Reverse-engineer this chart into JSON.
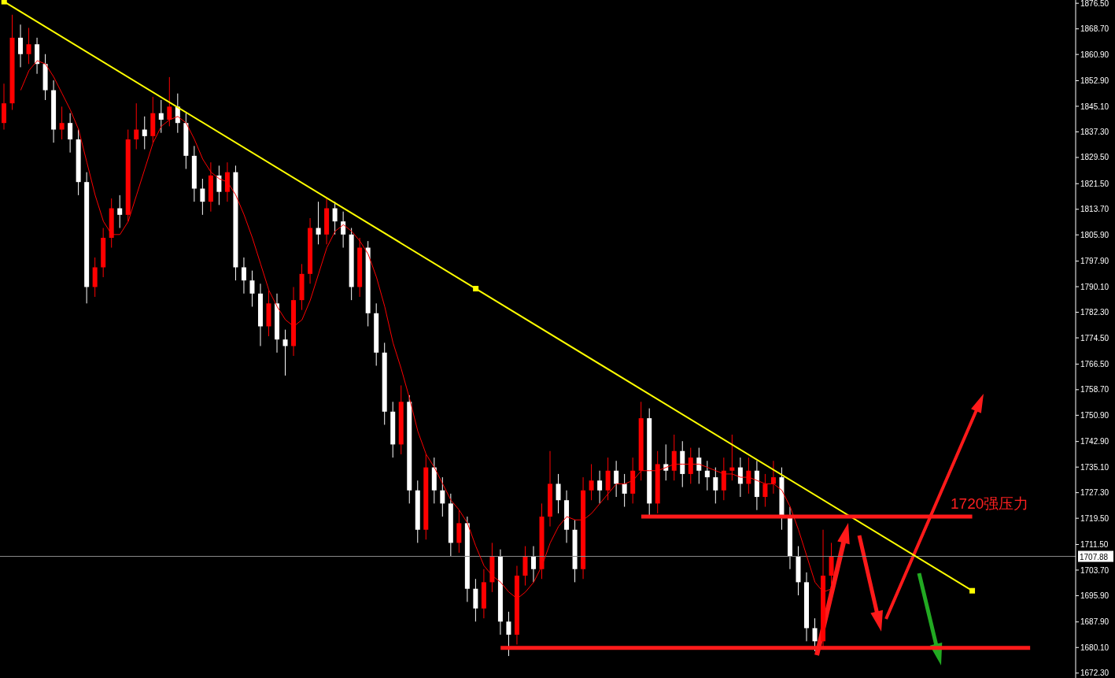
{
  "chart_data": {
    "type": "candlestick",
    "categories": [
      null,
      null,
      null,
      null,
      null,
      null,
      null,
      null,
      null,
      null,
      null,
      null,
      null,
      null,
      null,
      null,
      null,
      null,
      null,
      null,
      null,
      null,
      null,
      null,
      null,
      null,
      null,
      null,
      null,
      null,
      null,
      null,
      null,
      null,
      null,
      null,
      null,
      null,
      null,
      null,
      null,
      null,
      null,
      null,
      null,
      null,
      null,
      null,
      null,
      null,
      null,
      null,
      null,
      null,
      null,
      null,
      null,
      null,
      null,
      null,
      null,
      null,
      null,
      null,
      null,
      null,
      null,
      null,
      null,
      null,
      null,
      null,
      null,
      null,
      null,
      null,
      null,
      null,
      null,
      null,
      null,
      null,
      null,
      null,
      null,
      null,
      null,
      null,
      null,
      null,
      null,
      null,
      null,
      null,
      null,
      null,
      null,
      null,
      null,
      null,
      null,
      null,
      null,
      null,
      null,
      null,
      null,
      null,
      null,
      null,
      null,
      null,
      null,
      null,
      null,
      null,
      null,
      null,
      null,
      null,
      null,
      null,
      null,
      null,
      null,
      null,
      null,
      null,
      null,
      null
    ],
    "ohlc": [
      [
        1840,
        1852,
        1838,
        1846
      ],
      [
        1846,
        1873,
        1844,
        1866
      ],
      [
        1866,
        1870,
        1857,
        1861
      ],
      [
        1861,
        1869,
        1858,
        1864
      ],
      [
        1864,
        1866,
        1855,
        1858
      ],
      [
        1858,
        1861,
        1847,
        1850
      ],
      [
        1850,
        1853,
        1834,
        1838
      ],
      [
        1838,
        1845,
        1835,
        1840
      ],
      [
        1840,
        1843,
        1831,
        1835
      ],
      [
        1835,
        1838,
        1818,
        1822
      ],
      [
        1822,
        1825,
        1785,
        1790
      ],
      [
        1790,
        1799,
        1787,
        1796
      ],
      [
        1796,
        1808,
        1793,
        1805
      ],
      [
        1805,
        1817,
        1802,
        1814
      ],
      [
        1814,
        1818,
        1808,
        1812
      ],
      [
        1812,
        1838,
        1810,
        1835
      ],
      [
        1835,
        1846,
        1832,
        1838
      ],
      [
        1838,
        1842,
        1832,
        1836
      ],
      [
        1836,
        1848,
        1834,
        1843
      ],
      [
        1843,
        1847,
        1837,
        1841
      ],
      [
        1841,
        1854,
        1839,
        1845
      ],
      [
        1845,
        1849,
        1837,
        1840
      ],
      [
        1840,
        1843,
        1826,
        1830
      ],
      [
        1830,
        1833,
        1816,
        1820
      ],
      [
        1820,
        1823,
        1812,
        1816
      ],
      [
        1816,
        1828,
        1813,
        1824
      ],
      [
        1824,
        1827,
        1815,
        1819
      ],
      [
        1819,
        1828,
        1816,
        1825
      ],
      [
        1825,
        1827,
        1792,
        1796
      ],
      [
        1796,
        1799,
        1788,
        1792
      ],
      [
        1792,
        1795,
        1784,
        1788
      ],
      [
        1788,
        1791,
        1772,
        1778
      ],
      [
        1778,
        1789,
        1775,
        1785
      ],
      [
        1785,
        1788,
        1770,
        1774
      ],
      [
        1774,
        1777,
        1763,
        1772
      ],
      [
        1772,
        1790,
        1769,
        1786
      ],
      [
        1786,
        1797,
        1783,
        1794
      ],
      [
        1794,
        1811,
        1791,
        1808
      ],
      [
        1808,
        1816,
        1803,
        1806
      ],
      [
        1806,
        1817,
        1803,
        1814
      ],
      [
        1814,
        1816,
        1806,
        1810
      ],
      [
        1810,
        1813,
        1802,
        1806
      ],
      [
        1806,
        1808,
        1786,
        1790
      ],
      [
        1790,
        1805,
        1787,
        1802
      ],
      [
        1802,
        1804,
        1778,
        1782
      ],
      [
        1782,
        1785,
        1766,
        1770
      ],
      [
        1770,
        1773,
        1748,
        1752
      ],
      [
        1752,
        1755,
        1738,
        1742
      ],
      [
        1742,
        1760,
        1739,
        1755
      ],
      [
        1755,
        1757,
        1724,
        1728
      ],
      [
        1728,
        1731,
        1712,
        1716
      ],
      [
        1716,
        1739,
        1713,
        1735
      ],
      [
        1735,
        1738,
        1724,
        1728
      ],
      [
        1728,
        1732,
        1720,
        1724
      ],
      [
        1724,
        1727,
        1708,
        1712
      ],
      [
        1712,
        1722,
        1709,
        1718
      ],
      [
        1718,
        1720,
        1694,
        1698
      ],
      [
        1698,
        1701,
        1688,
        1692
      ],
      [
        1692,
        1704,
        1689,
        1700
      ],
      [
        1700,
        1712,
        1697,
        1708
      ],
      [
        1708,
        1710,
        1684,
        1688
      ],
      [
        1688,
        1691,
        1677.5,
        1684
      ],
      [
        1684,
        1705,
        1681,
        1702
      ],
      [
        1702,
        1711,
        1699,
        1708
      ],
      [
        1708,
        1711,
        1700,
        1704
      ],
      [
        1704,
        1724,
        1701,
        1720
      ],
      [
        1720,
        1740,
        1717,
        1730
      ],
      [
        1730,
        1733,
        1721,
        1725
      ],
      [
        1725,
        1728,
        1712,
        1716
      ],
      [
        1716,
        1719,
        1700,
        1704
      ],
      [
        1704,
        1732,
        1701,
        1728
      ],
      [
        1728,
        1736,
        1725,
        1731
      ],
      [
        1731,
        1734,
        1724,
        1728
      ],
      [
        1728,
        1738,
        1725,
        1734
      ],
      [
        1734,
        1737,
        1726,
        1730
      ],
      [
        1730,
        1733,
        1723,
        1727
      ],
      [
        1727,
        1738,
        1724,
        1734
      ],
      [
        1734,
        1755,
        1731,
        1750
      ],
      [
        1750,
        1753,
        1720,
        1724
      ],
      [
        1724,
        1740,
        1721,
        1736
      ],
      [
        1736,
        1742,
        1731,
        1734
      ],
      [
        1734,
        1745,
        1731,
        1740
      ],
      [
        1740,
        1743,
        1729,
        1733
      ],
      [
        1733,
        1741,
        1730,
        1738
      ],
      [
        1738,
        1741,
        1730,
        1734
      ],
      [
        1734,
        1737,
        1728,
        1732
      ],
      [
        1732,
        1735,
        1724,
        1728
      ],
      [
        1728,
        1738,
        1725,
        1734
      ],
      [
        1734,
        1745,
        1731,
        1735
      ],
      [
        1735,
        1738,
        1726,
        1730
      ],
      [
        1730,
        1738,
        1727,
        1734
      ],
      [
        1734,
        1737,
        1722,
        1726
      ],
      [
        1726,
        1733,
        1723,
        1730
      ],
      [
        1730,
        1737,
        1727,
        1732
      ],
      [
        1732,
        1735,
        1716,
        1720
      ],
      [
        1720,
        1723,
        1704,
        1708
      ],
      [
        1708,
        1711,
        1696,
        1700
      ],
      [
        1700,
        1703,
        1682,
        1686
      ],
      [
        1686,
        1689,
        1679,
        1682
      ],
      [
        1682,
        1716,
        1680,
        1702
      ],
      [
        1702,
        1712,
        1699,
        1708
      ],
      null,
      null,
      null,
      null,
      null,
      null,
      null,
      null,
      null,
      null,
      null,
      null,
      null,
      null,
      null,
      null,
      null,
      null,
      null,
      null,
      null,
      null,
      null,
      null,
      null,
      null,
      null,
      null,
      null
    ],
    "colors": [
      "#ff0000",
      "#ff0000",
      "#ffffff",
      "#ff0000",
      "#ffffff",
      "#ffffff",
      "#ffffff",
      "#ff0000",
      "#ffffff",
      "#ffffff",
      "#ffffff",
      "#ff0000",
      "#ff0000",
      "#ff0000",
      "#ffffff",
      "#ff0000",
      "#ff0000",
      "#ffffff",
      "#ff0000",
      "#ffffff",
      "#ff0000",
      "#ffffff",
      "#ffffff",
      "#ffffff",
      "#ffffff",
      "#ff0000",
      "#ffffff",
      "#ff0000",
      "#ffffff",
      "#ffffff",
      "#ffffff",
      "#ffffff",
      "#ff0000",
      "#ffffff",
      "#ffffff",
      "#ff0000",
      "#ff0000",
      "#ff0000",
      "#ffffff",
      "#ff0000",
      "#ffffff",
      "#ffffff",
      "#ffffff",
      "#ff0000",
      "#ffffff",
      "#ffffff",
      "#ffffff",
      "#ffffff",
      "#ff0000",
      "#ffffff",
      "#ffffff",
      "#ff0000",
      "#ffffff",
      "#ffffff",
      "#ffffff",
      "#ff0000",
      "#ffffff",
      "#ffffff",
      "#ff0000",
      "#ff0000",
      "#ffffff",
      "#ffffff",
      "#ff0000",
      "#ff0000",
      "#ffffff",
      "#ff0000",
      "#ff0000",
      "#ffffff",
      "#ffffff",
      "#ffffff",
      "#ff0000",
      "#ff0000",
      "#ffffff",
      "#ff0000",
      "#ffffff",
      "#ffffff",
      "#ff0000",
      "#ff0000",
      "#ffffff",
      "#ff0000",
      "#ffffff",
      "#ff0000",
      "#ffffff",
      "#ff0000",
      "#ffffff",
      "#ffffff",
      "#ffffff",
      "#ff0000",
      "#ff0000",
      "#ffffff",
      "#ff0000",
      "#ffffff",
      "#ff0000",
      "#ff0000",
      "#ffffff",
      "#ffffff",
      "#ffffff",
      "#ffffff",
      "#ffffff",
      "#ff0000",
      "#ff0000",
      null,
      null,
      null,
      null,
      null,
      null,
      null,
      null,
      null,
      null,
      null,
      null,
      null,
      null,
      null,
      null,
      null,
      null,
      null,
      null,
      null,
      null,
      null,
      null,
      null,
      null,
      null,
      null,
      null
    ],
    "series": [
      {
        "type": "line",
        "color": "#ff0000",
        "marker": "none",
        "values": [
          null,
          null,
          1850,
          1856,
          1859,
          1858,
          1854,
          1849,
          1844,
          1838,
          1828,
          1818,
          1810,
          1806,
          1806,
          1810,
          1818,
          1826,
          1834,
          1839,
          1841,
          1842,
          1840,
          1835,
          1829,
          1825,
          1823,
          1822,
          1818,
          1812,
          1805,
          1797,
          1789,
          1784,
          1780,
          1778,
          1780,
          1786,
          1794,
          1802,
          1807,
          1809,
          1807,
          1804,
          1800,
          1793,
          1784,
          1773,
          1765,
          1756,
          1746,
          1739,
          1735,
          1730,
          1725,
          1722,
          1718,
          1711,
          1705,
          1702,
          1700,
          1697,
          1695,
          1697,
          1700,
          1705,
          1712,
          1717,
          1720,
          1719,
          1719,
          1721,
          1724,
          1727,
          1730,
          1730,
          1731,
          1734,
          1734,
          1734,
          1735,
          1736,
          1736,
          1736,
          1736,
          1735,
          1734,
          1733,
          1733,
          1732,
          1732,
          1731,
          1730,
          1730,
          1728,
          1723,
          1716,
          1708,
          1700,
          1697,
          1698,
          null,
          null,
          null,
          null,
          null,
          null,
          null,
          null,
          null,
          null,
          null,
          null,
          null,
          null,
          null,
          null,
          null,
          null,
          null,
          null,
          null,
          null,
          null,
          null,
          null,
          null,
          null,
          null,
          null
        ]
      },
      {
        "type": "line",
        "color": "#ffff00",
        "marker": "square",
        "values": [
          1877.0,
          null,
          null,
          null,
          null,
          null,
          null,
          null,
          null,
          null,
          null,
          null,
          null,
          null,
          null,
          null,
          null,
          null,
          null,
          null,
          null,
          null,
          null,
          null,
          null,
          null,
          null,
          null,
          null,
          null,
          null,
          null,
          null,
          null,
          null,
          null,
          null,
          null,
          null,
          null,
          null,
          null,
          null,
          null,
          null,
          null,
          null,
          null,
          null,
          null,
          null,
          null,
          null,
          null,
          null,
          null,
          null,
          1789.5,
          null,
          null,
          null,
          null,
          null,
          null,
          null,
          null,
          null,
          null,
          null,
          null,
          null,
          null,
          null,
          null,
          null,
          null,
          null,
          null,
          null,
          null,
          null,
          null,
          null,
          null,
          null,
          null,
          null,
          null,
          null,
          null,
          null,
          null,
          null,
          null,
          null,
          null,
          null,
          null,
          null,
          null,
          null,
          null,
          null,
          null,
          null,
          null,
          null,
          null,
          null,
          null,
          null,
          null,
          null,
          null,
          null,
          null,
          null,
          1697.4,
          null,
          null,
          null,
          null,
          null,
          null,
          null,
          null,
          null,
          null,
          null,
          null
        ]
      },
      {
        "type": "line",
        "color": "#ff1a1a",
        "marker": "none",
        "values": [
          null,
          null,
          null,
          null,
          null,
          null,
          null,
          null,
          null,
          null,
          null,
          null,
          null,
          null,
          null,
          null,
          null,
          null,
          null,
          null,
          null,
          null,
          null,
          null,
          null,
          null,
          null,
          null,
          null,
          null,
          null,
          null,
          null,
          null,
          null,
          null,
          null,
          null,
          null,
          null,
          null,
          null,
          null,
          null,
          null,
          null,
          null,
          null,
          null,
          null,
          null,
          null,
          null,
          null,
          null,
          null,
          null,
          null,
          null,
          null,
          null,
          null,
          null,
          null,
          null,
          null,
          null,
          null,
          null,
          null,
          null,
          null,
          null,
          null,
          null,
          null,
          null,
          1720,
          null,
          null,
          null,
          null,
          null,
          null,
          null,
          null,
          null,
          null,
          null,
          null,
          null,
          null,
          null,
          null,
          null,
          null,
          null,
          null,
          null,
          null,
          null,
          null,
          null,
          null,
          null,
          null,
          null,
          null,
          null,
          null,
          null,
          null,
          null,
          null,
          null,
          null,
          null,
          1720,
          null,
          null,
          null,
          null,
          null,
          null,
          null,
          null,
          null,
          null,
          null,
          null
        ]
      },
      {
        "type": "line",
        "color": "#ff1a1a",
        "marker": "none",
        "values": [
          null,
          null,
          null,
          null,
          null,
          null,
          null,
          null,
          null,
          null,
          null,
          null,
          null,
          null,
          null,
          null,
          null,
          null,
          null,
          null,
          null,
          null,
          null,
          null,
          null,
          null,
          null,
          null,
          null,
          null,
          null,
          null,
          null,
          null,
          null,
          null,
          null,
          null,
          null,
          null,
          null,
          null,
          null,
          null,
          null,
          null,
          null,
          null,
          null,
          null,
          null,
          null,
          null,
          null,
          null,
          null,
          null,
          null,
          null,
          null,
          1680,
          null,
          null,
          null,
          null,
          null,
          null,
          null,
          null,
          null,
          null,
          null,
          null,
          null,
          null,
          null,
          null,
          null,
          null,
          null,
          null,
          null,
          null,
          null,
          null,
          null,
          null,
          null,
          null,
          null,
          null,
          null,
          null,
          null,
          null,
          null,
          null,
          null,
          null,
          null,
          null,
          null,
          null,
          null,
          null,
          null,
          null,
          null,
          null,
          null,
          null,
          null,
          null,
          null,
          null,
          null,
          null,
          null,
          null,
          null,
          null,
          null,
          null,
          null,
          1680,
          null,
          null,
          null,
          null,
          null
        ]
      }
    ],
    "ylim": [
      1670.8,
      1877.5
    ],
    "yticks": [
      {
        "value": 1876.5,
        "label": "1876.50"
      },
      {
        "value": 1868.7,
        "label": "1868.70"
      },
      {
        "value": 1860.9,
        "label": "1860.90"
      },
      {
        "value": 1852.9,
        "label": "1852.90"
      },
      {
        "value": 1845.1,
        "label": "1845.10"
      },
      {
        "value": 1837.3,
        "label": "1837.30"
      },
      {
        "value": 1829.5,
        "label": "1829.50"
      },
      {
        "value": 1821.5,
        "label": "1821.50"
      },
      {
        "value": 1813.7,
        "label": "1813.70"
      },
      {
        "value": 1805.9,
        "label": "1805.90"
      },
      {
        "value": 1797.9,
        "label": "1797.90"
      },
      {
        "value": 1790.1,
        "label": "1790.10"
      },
      {
        "value": 1782.3,
        "label": "1782.30"
      },
      {
        "value": 1774.5,
        "label": "1774.50"
      },
      {
        "value": 1766.5,
        "label": "1766.50"
      },
      {
        "value": 1758.7,
        "label": "1758.70"
      },
      {
        "value": 1750.9,
        "label": "1750.90"
      },
      {
        "value": 1742.9,
        "label": "1742.90"
      },
      {
        "value": 1735.1,
        "label": "1735.10"
      },
      {
        "value": 1727.3,
        "label": "1727.30"
      },
      {
        "value": 1719.5,
        "label": "1719.50"
      },
      {
        "value": 1711.5,
        "label": "1711.50"
      },
      {
        "value": 1703.7,
        "label": "1703.70"
      },
      {
        "value": 1695.9,
        "label": "1695.90"
      },
      {
        "value": 1687.9,
        "label": "1687.90"
      },
      {
        "value": 1680.1,
        "label": "1680.10"
      },
      {
        "value": 1672.3,
        "label": "1672.30"
      }
    ],
    "tick_labels": "y",
    "ref_lines": [
      {
        "axis": "y",
        "value": 1707.88,
        "label": "1707.88",
        "color": "#8c8c8c"
      }
    ],
    "annotations": [
      "1720强压力"
    ]
  }
}
